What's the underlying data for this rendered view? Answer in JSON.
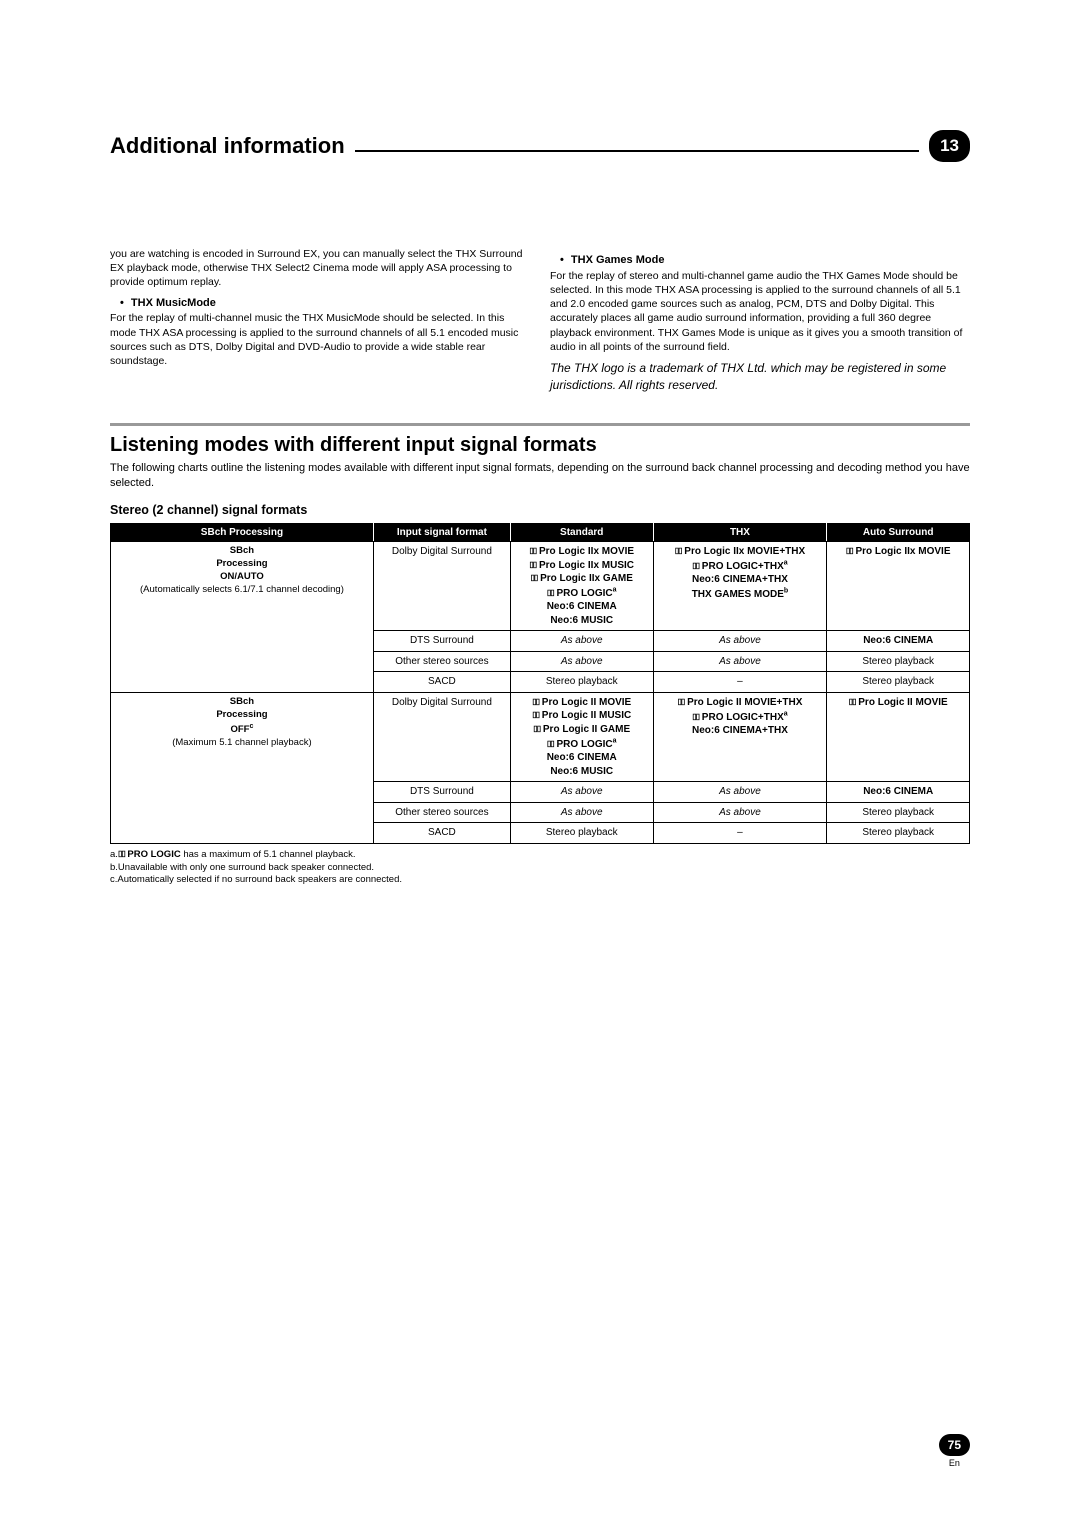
{
  "header": {
    "title": "Additional information",
    "chapter": "13"
  },
  "leftCol": {
    "introPara": "you are watching is encoded in Surround EX, you can manually select the THX Surround EX playback mode, otherwise THX Select2 Cinema mode will apply ASA processing to provide optimum replay.",
    "h1": "THX MusicMode",
    "p1": "For the replay of multi-channel music the THX MusicMode should be selected. In this mode THX ASA processing is applied to the surround channels of all 5.1 encoded music sources such as DTS, Dolby Digital and DVD-Audio to provide a wide stable rear soundstage."
  },
  "rightCol": {
    "h1": "THX Games Mode",
    "p1": "For the replay of stereo and multi-channel game audio the THX Games Mode should be selected. In this mode THX ASA processing is applied to the surround channels of all 5.1 and 2.0 encoded game sources such as analog, PCM, DTS and Dolby Digital. This accurately places all game audio surround information, providing a full 360 degree playback environment. THX Games Mode is unique as it gives you a smooth transition of audio in all points of the surround field.",
    "note": "The THX logo is a trademark of THX Ltd. which may be registered in some jurisdictions. All rights reserved."
  },
  "section": {
    "title": "Listening modes with different input signal formats",
    "intro": "The following charts outline the listening modes available with different input signal formats, depending on the surround back channel processing and decoding method you have selected.",
    "sub": "Stereo (2 channel) signal formats"
  },
  "table": {
    "headers": [
      "SBch Processing",
      "Input signal format",
      "Standard",
      "THX",
      "Auto Surround"
    ],
    "group1": {
      "sbch_bold": "SBch Processing ON/AUTO",
      "sbch_plain": "(Automatically selects 6.1/7.1 channel decoding)",
      "rows": [
        {
          "input": "Dolby Digital Surround",
          "standard_lines": [
            "Pro Logic IIx MOVIE",
            "Pro Logic IIx MUSIC",
            "Pro Logic IIx GAME",
            "PRO LOGIC",
            "Neo:6 CINEMA",
            "Neo:6 MUSIC"
          ],
          "standard_sup": "a",
          "thx_lines": [
            "Pro Logic IIx MOVIE+THX",
            "PRO LOGIC+THX",
            "Neo:6 CINEMA+THX",
            "THX GAMES MODE"
          ],
          "thx_sup1": "a",
          "thx_sup2": "b",
          "auto": "Pro Logic IIx MOVIE",
          "auto_bold": true,
          "auto_glyph": true
        },
        {
          "input": "DTS Surround",
          "standard": "As above",
          "thx": "As above",
          "auto": "Neo:6 CINEMA",
          "auto_bold": true
        },
        {
          "input": "Other stereo sources",
          "standard": "As above",
          "thx": "As above",
          "auto": "Stereo playback"
        },
        {
          "input": "SACD",
          "standard": "Stereo playback",
          "thx": "–",
          "auto": "Stereo playback"
        }
      ]
    },
    "group2": {
      "sbch_bold": "SBch Processing OFF",
      "sbch_sup": "c",
      "sbch_plain": "(Maximum 5.1 channel playback)",
      "rows": [
        {
          "input": "Dolby Digital Surround",
          "standard_lines": [
            "Pro Logic II MOVIE",
            "Pro Logic II MUSIC",
            "Pro Logic II GAME",
            "PRO LOGIC",
            "Neo:6 CINEMA",
            "Neo:6 MUSIC"
          ],
          "standard_sup": "a",
          "thx_lines": [
            "Pro Logic II MOVIE+THX",
            "PRO LOGIC+THX",
            "Neo:6 CINEMA+THX"
          ],
          "thx_sup1": "a",
          "auto": "Pro Logic II MOVIE",
          "auto_bold": true,
          "auto_glyph": true
        },
        {
          "input": "DTS Surround",
          "standard": "As above",
          "thx": "As above",
          "auto": "Neo:6 CINEMA",
          "auto_bold": true
        },
        {
          "input": "Other stereo sources",
          "standard": "As above",
          "thx": "As above",
          "auto": "Stereo playback"
        },
        {
          "input": "SACD",
          "standard": "Stereo playback",
          "thx": "–",
          "auto": "Stereo playback"
        }
      ]
    }
  },
  "footnotes": {
    "a_pre": "a.",
    "a_bold": "PRO LOGIC",
    "a_post": " has a maximum of 5.1 channel playback.",
    "b": "b.Unavailable with only one surround back speaker connected.",
    "c": "c.Automatically selected if no surround back speakers are connected."
  },
  "pageNum": {
    "num": "75",
    "lang": "En"
  },
  "glyph": "▯▯"
}
